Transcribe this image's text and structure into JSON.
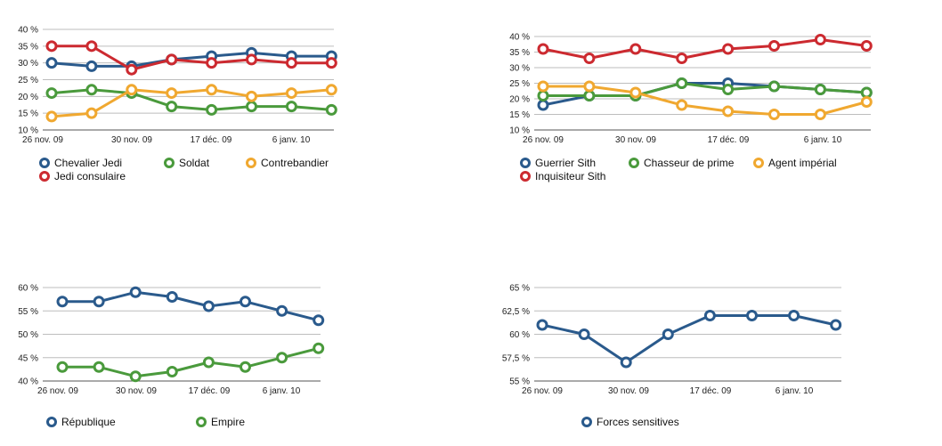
{
  "chart_data": [
    {
      "type": "line",
      "x_ticks": [
        "26 nov. 09",
        "30 nov. 09",
        "17 déc. 09",
        "6 janv. 10"
      ],
      "y_ticks": [
        "10 %",
        "15 %",
        "20 %",
        "25 %",
        "30 %",
        "35 %",
        "40 %"
      ],
      "ylim": [
        10,
        40
      ],
      "grid": "horizontal",
      "legend_position": "bottom",
      "series": [
        {
          "name": "Chevalier Jedi",
          "color": "#2a5a8c",
          "values": [
            30,
            29,
            29,
            31,
            32,
            33,
            32,
            32
          ]
        },
        {
          "name": "Soldat",
          "color": "#4a9a3c",
          "values": [
            21,
            22,
            21,
            17,
            16,
            17,
            17,
            16
          ]
        },
        {
          "name": "Contrebandier",
          "color": "#f0a830",
          "values": [
            14,
            15,
            22,
            21,
            22,
            20,
            21,
            22
          ]
        },
        {
          "name": "Jedi consulaire",
          "color": "#cc2a30",
          "values": [
            35,
            35,
            28,
            31,
            30,
            31,
            30,
            30
          ]
        }
      ]
    },
    {
      "type": "line",
      "x_ticks": [
        "26 nov. 09",
        "30 nov. 09",
        "17 déc. 09",
        "6 janv. 10"
      ],
      "y_ticks": [
        "10 %",
        "15 %",
        "20 %",
        "25 %",
        "30 %",
        "35 %",
        "40 %"
      ],
      "ylim": [
        10,
        40
      ],
      "grid": "horizontal",
      "legend_position": "bottom",
      "series": [
        {
          "name": "Guerrier Sith",
          "color": "#2a5a8c",
          "values": [
            18,
            21,
            21,
            25,
            25,
            24,
            23,
            22
          ]
        },
        {
          "name": "Chasseur de prime",
          "color": "#4a9a3c",
          "values": [
            21,
            21,
            21,
            25,
            23,
            24,
            23,
            22
          ]
        },
        {
          "name": "Agent impérial",
          "color": "#f0a830",
          "values": [
            24,
            24,
            22,
            18,
            16,
            15,
            15,
            19
          ]
        },
        {
          "name": "Inquisiteur Sith",
          "color": "#cc2a30",
          "values": [
            36,
            33,
            36,
            33,
            36,
            37,
            39,
            37
          ]
        }
      ]
    },
    {
      "type": "line",
      "x_ticks": [
        "26 nov. 09",
        "30 nov. 09",
        "17 déc. 09",
        "6 janv. 10"
      ],
      "y_ticks": [
        "40 %",
        "45 %",
        "50 %",
        "55 %",
        "60 %"
      ],
      "ylim": [
        40,
        60
      ],
      "grid": "horizontal",
      "legend_position": "bottom",
      "series": [
        {
          "name": "République",
          "color": "#2a5a8c",
          "values": [
            57,
            57,
            59,
            58,
            56,
            57,
            55,
            53
          ]
        },
        {
          "name": "Empire",
          "color": "#4a9a3c",
          "values": [
            43,
            43,
            41,
            42,
            44,
            43,
            45,
            47
          ]
        }
      ]
    },
    {
      "type": "line",
      "x_ticks": [
        "26 nov. 09",
        "30 nov. 09",
        "17 déc. 09",
        "6 janv. 10"
      ],
      "y_ticks": [
        "55 %",
        "57,5 %",
        "60 %",
        "62,5 %",
        "65 %"
      ],
      "ylim": [
        55,
        65
      ],
      "grid": "horizontal",
      "legend_position": "bottom",
      "series": [
        {
          "name": "Forces sensitives",
          "color": "#2a5a8c",
          "values": [
            61,
            60,
            57,
            60,
            62,
            62,
            62,
            61
          ]
        }
      ]
    }
  ]
}
